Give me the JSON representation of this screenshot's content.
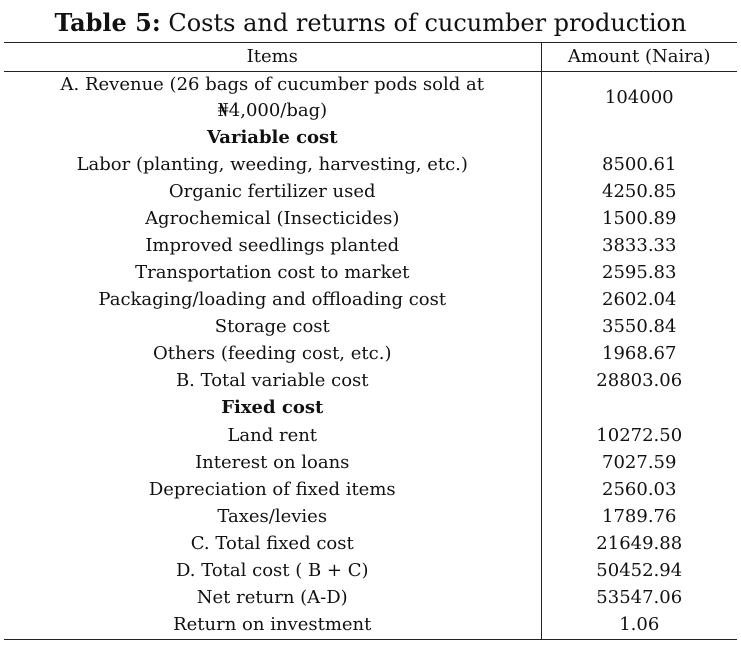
{
  "title": {
    "bold_part": "Table 5:",
    "rest": " Costs and returns of cucumber production"
  },
  "header": {
    "items": "Items",
    "amount": "Amount (Naira)"
  },
  "rows": [
    {
      "item": "A. Revenue (26 bags of cucumber pods sold at ₦4,000/bag)",
      "amount": "104000"
    },
    {
      "item": "Variable cost",
      "amount": ""
    },
    {
      "item": "Labor (planting, weeding, harvesting, etc.)",
      "amount": "8500.61"
    },
    {
      "item": "Organic fertilizer used",
      "amount": "4250.85"
    },
    {
      "item": "Agrochemical (Insecticides)",
      "amount": "1500.89"
    },
    {
      "item": "Improved seedlings planted",
      "amount": "3833.33"
    },
    {
      "item": "Transportation cost to market",
      "amount": "2595.83"
    },
    {
      "item": "Packaging/loading and offloading cost",
      "amount": "2602.04"
    },
    {
      "item": "Storage cost",
      "amount": "3550.84"
    },
    {
      "item": "Others (feeding cost, etc.)",
      "amount": "1968.67"
    },
    {
      "item": "B. Total variable cost",
      "amount": "28803.06"
    },
    {
      "item": "Fixed cost",
      "amount": ""
    },
    {
      "item": "Land rent",
      "amount": "10272.50"
    },
    {
      "item": "Interest on loans",
      "amount": "7027.59"
    },
    {
      "item": "Depreciation of fixed items",
      "amount": "2560.03"
    },
    {
      "item": "Taxes/levies",
      "amount": "1789.76"
    },
    {
      "item": "C. Total fixed cost",
      "amount": "21649.88"
    },
    {
      "item": "D. Total cost ( B + C)",
      "amount": "50452.94"
    },
    {
      "item": "Net return (A-D)",
      "amount": "53547.06"
    },
    {
      "item": "Return on investment",
      "amount": "1.06"
    }
  ]
}
